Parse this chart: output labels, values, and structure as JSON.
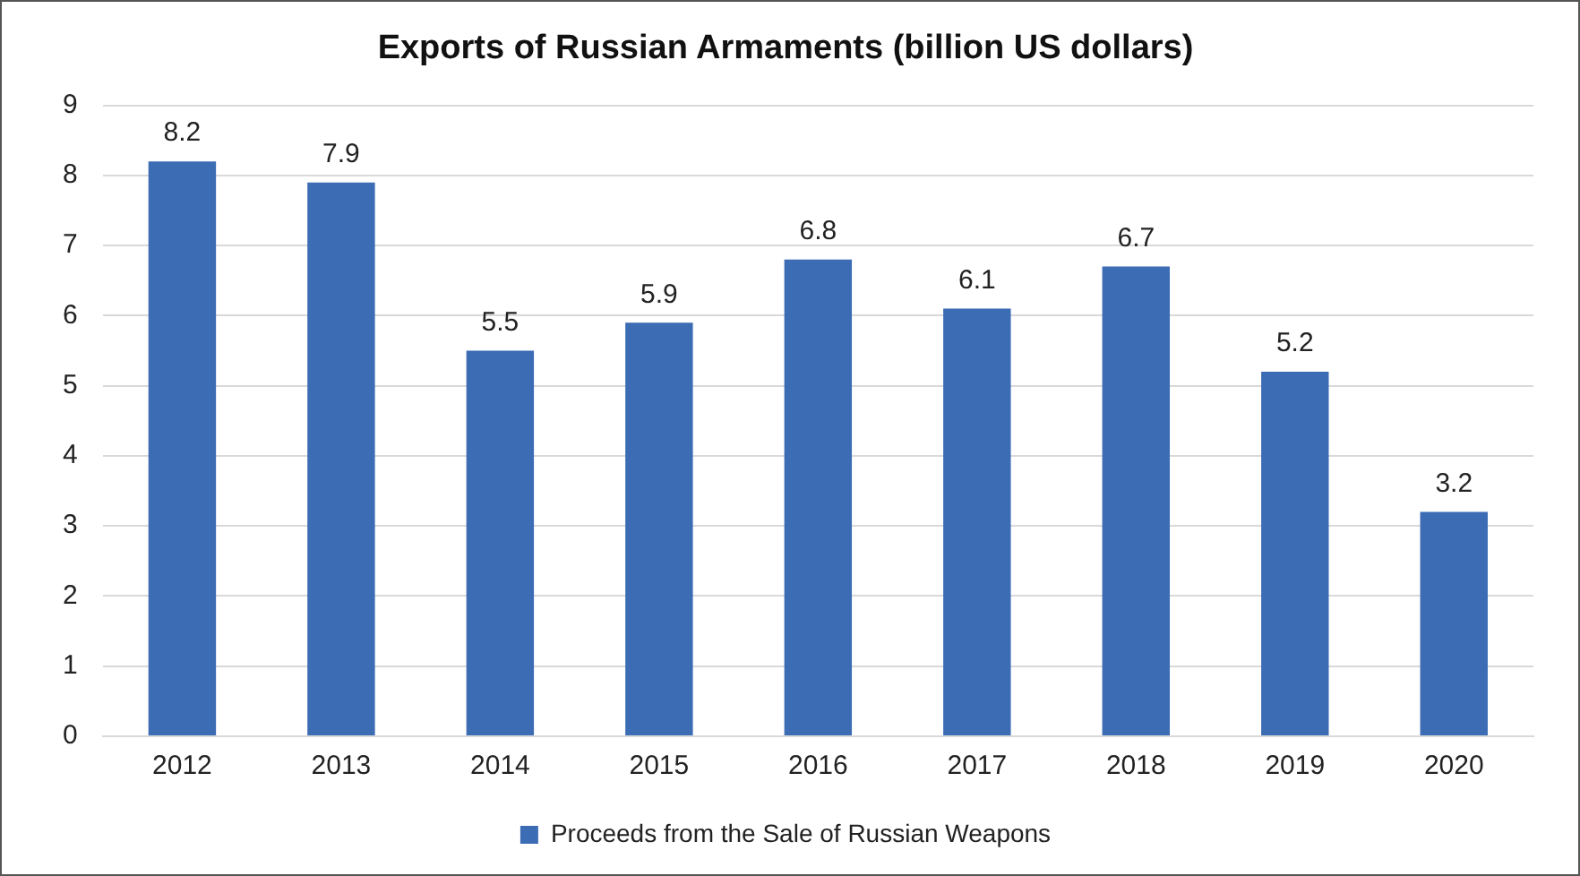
{
  "chart_data": {
    "type": "bar",
    "title": "Exports of Russian Armaments (billion US dollars)",
    "categories": [
      "2012",
      "2013",
      "2014",
      "2015",
      "2016",
      "2017",
      "2018",
      "2019",
      "2020"
    ],
    "series": [
      {
        "name": "Proceeds from the Sale of Russian Weapons",
        "color": "#3c6cb4",
        "values": [
          8.2,
          7.9,
          5.5,
          5.9,
          6.8,
          6.1,
          6.7,
          5.2,
          3.2
        ]
      }
    ],
    "ylim": [
      0,
      9
    ],
    "yticks": [
      0,
      1,
      2,
      3,
      4,
      5,
      6,
      7,
      8,
      9
    ],
    "grid": "y",
    "legend": "bottom",
    "data_labels": true
  }
}
